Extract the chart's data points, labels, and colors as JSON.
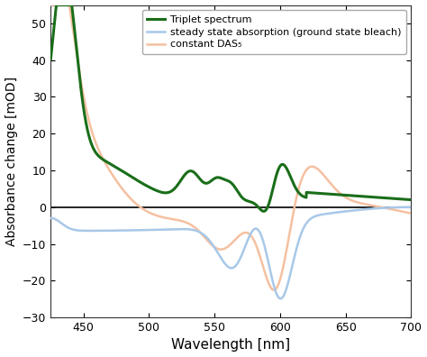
{
  "xlabel": "Wavelength [nm]",
  "ylabel": "Absorbance change [mOD]",
  "xlim": [
    425,
    700
  ],
  "ylim": [
    -30,
    55
  ],
  "yticks": [
    -30,
    -20,
    -10,
    0,
    10,
    20,
    30,
    40,
    50
  ],
  "xticks": [
    450,
    500,
    550,
    600,
    650,
    700
  ],
  "bg_color": "#ffffff",
  "triplet_color": "#1a6e1a",
  "blue_color": "#a8c8e8",
  "orange_color": "#f5c0a0",
  "legend_labels": [
    "Triplet spectrum",
    "steady state absorption (ground state bleach)",
    "constant DAS₅"
  ],
  "triplet_lw": 2.2,
  "blue_lw": 1.8,
  "orange_lw": 1.8
}
